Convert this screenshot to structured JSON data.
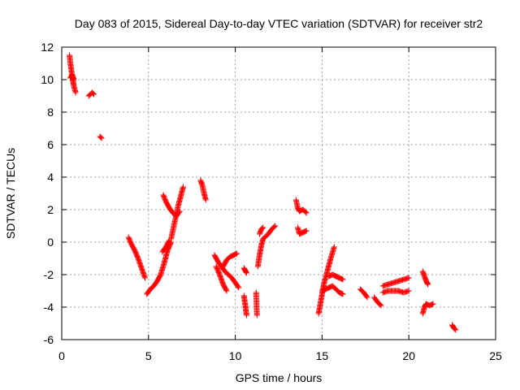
{
  "chart_data": {
    "type": "scatter",
    "title": "Day 083 of 2015, Sidereal Day-to-day VTEC variation (SDTVAR) for receiver str2",
    "xlabel": "GPS time / hours",
    "ylabel": "SDTVAR / TECUs",
    "xlim": [
      0,
      25
    ],
    "ylim": [
      -6,
      12
    ],
    "xticks": [
      "0",
      "5",
      "10",
      "15",
      "20",
      "25"
    ],
    "yticks": [
      "-6",
      "-4",
      "-2",
      "0",
      "2",
      "4",
      "6",
      "8",
      "10",
      "12"
    ],
    "grid": true,
    "legend": "none",
    "marker": "+",
    "color": "#ff0000",
    "series": [
      {
        "name": "str2",
        "segments": [
          {
            "x": [
              0.45,
              0.5,
              0.55,
              0.6,
              0.65,
              0.7,
              0.75,
              0.8
            ],
            "y": [
              11.5,
              11.0,
              10.6,
              10.2,
              9.9,
              9.6,
              9.4,
              9.2
            ]
          },
          {
            "x": [
              0.5,
              0.6,
              0.7
            ],
            "y": [
              10.1,
              10.3,
              10.0
            ]
          },
          {
            "x": [
              1.55,
              1.65,
              1.75,
              1.85
            ],
            "y": [
              9.0,
              9.1,
              9.2,
              9.1
            ]
          },
          {
            "x": [
              2.2,
              2.3
            ],
            "y": [
              6.5,
              6.4
            ]
          },
          {
            "x": [
              3.85,
              4.0,
              4.2,
              4.4,
              4.6,
              4.8
            ],
            "y": [
              0.3,
              -0.1,
              -0.5,
              -1.0,
              -1.6,
              -2.2
            ]
          },
          {
            "x": [
              4.9,
              5.1,
              5.3,
              5.5,
              5.7,
              5.9,
              6.1,
              6.3
            ],
            "y": [
              -3.2,
              -2.9,
              -2.7,
              -2.4,
              -2.0,
              -1.3,
              -0.5,
              0.0
            ]
          },
          {
            "x": [
              6.3,
              6.5,
              6.7,
              6.9,
              7.0
            ],
            "y": [
              0.2,
              1.2,
              2.2,
              3.0,
              3.4
            ]
          },
          {
            "x": [
              5.85,
              6.0,
              6.2,
              6.4,
              6.6,
              6.8
            ],
            "y": [
              2.9,
              2.5,
              2.1,
              1.8,
              1.6,
              1.9
            ]
          },
          {
            "x": [
              5.8,
              6.0,
              6.2
            ],
            "y": [
              -0.6,
              -0.3,
              0.1
            ]
          },
          {
            "x": [
              8.0,
              8.1,
              8.2,
              8.3
            ],
            "y": [
              3.8,
              3.5,
              3.0,
              2.6
            ]
          },
          {
            "x": [
              8.8,
              9.0,
              9.2,
              9.4,
              9.6,
              9.8,
              10.0,
              10.2
            ],
            "y": [
              -0.8,
              -1.2,
              -1.5,
              -1.8,
              -2.0,
              -2.2,
              -2.5,
              -2.8
            ]
          },
          {
            "x": [
              8.9,
              9.1,
              9.3,
              9.5
            ],
            "y": [
              -1.5,
              -2.0,
              -2.6,
              -3.0
            ]
          },
          {
            "x": [
              9.3,
              9.5,
              9.7,
              9.9,
              10.1
            ],
            "y": [
              -1.5,
              -1.1,
              -0.9,
              -0.8,
              -0.7
            ]
          },
          {
            "x": [
              10.5,
              10.6,
              10.65
            ],
            "y": [
              -1.6,
              -1.8,
              -1.9
            ]
          },
          {
            "x": [
              10.5,
              10.55,
              10.6,
              10.65
            ],
            "y": [
              -3.3,
              -3.7,
              -4.1,
              -4.5
            ]
          },
          {
            "x": [
              11.2,
              11.25
            ],
            "y": [
              -3.1,
              -4.5
            ]
          },
          {
            "x": [
              11.3,
              11.4,
              11.5,
              11.6,
              11.7,
              11.9,
              12.1,
              12.3
            ],
            "y": [
              -1.5,
              -0.8,
              -0.2,
              0.2,
              0.3,
              0.5,
              0.8,
              1.0
            ]
          },
          {
            "x": [
              11.4,
              11.5,
              11.6
            ],
            "y": [
              0.5,
              0.8,
              0.9
            ]
          },
          {
            "x": [
              13.5,
              13.6,
              13.7,
              13.9,
              14.1
            ],
            "y": [
              2.6,
              2.1,
              1.9,
              2.0,
              1.8
            ]
          },
          {
            "x": [
              13.6,
              13.7,
              13.9,
              14.1
            ],
            "y": [
              0.9,
              0.5,
              0.6,
              0.7
            ]
          },
          {
            "x": [
              14.8,
              14.9,
              15.0,
              15.1,
              15.3,
              15.5,
              15.7
            ],
            "y": [
              -4.4,
              -3.8,
              -3.2,
              -2.6,
              -1.8,
              -1.0,
              -0.3
            ]
          },
          {
            "x": [
              15.0,
              15.2,
              15.4,
              15.6,
              15.8,
              16.0,
              16.2
            ],
            "y": [
              -3.0,
              -2.9,
              -2.8,
              -2.7,
              -2.9,
              -3.1,
              -3.2
            ]
          },
          {
            "x": [
              15.4,
              15.6,
              15.8,
              16.0,
              16.2
            ],
            "y": [
              -2.1,
              -2.0,
              -2.1,
              -2.2,
              -2.3
            ]
          },
          {
            "x": [
              17.2,
              17.4,
              17.6
            ],
            "y": [
              -2.9,
              -3.1,
              -3.4
            ]
          },
          {
            "x": [
              18.0,
              18.2,
              18.4
            ],
            "y": [
              -3.4,
              -3.7,
              -3.9
            ]
          },
          {
            "x": [
              18.5,
              18.8,
              19.1,
              19.4,
              19.7,
              20.0
            ],
            "y": [
              -2.7,
              -2.6,
              -2.5,
              -2.4,
              -2.3,
              -2.2
            ]
          },
          {
            "x": [
              18.5,
              18.8,
              19.1,
              19.4,
              19.7,
              20.0
            ],
            "y": [
              -3.1,
              -3.0,
              -3.0,
              -3.0,
              -3.1,
              -3.0
            ]
          },
          {
            "x": [
              20.8,
              20.9,
              21.0,
              21.1
            ],
            "y": [
              -1.8,
              -2.1,
              -2.4,
              -2.6
            ]
          },
          {
            "x": [
              20.8,
              20.9,
              21.0,
              21.2,
              21.4
            ],
            "y": [
              -4.4,
              -4.0,
              -3.8,
              -3.9,
              -3.8
            ]
          },
          {
            "x": [
              22.5,
              22.6,
              22.7
            ],
            "y": [
              -5.1,
              -5.3,
              -5.4
            ]
          }
        ]
      }
    ]
  }
}
